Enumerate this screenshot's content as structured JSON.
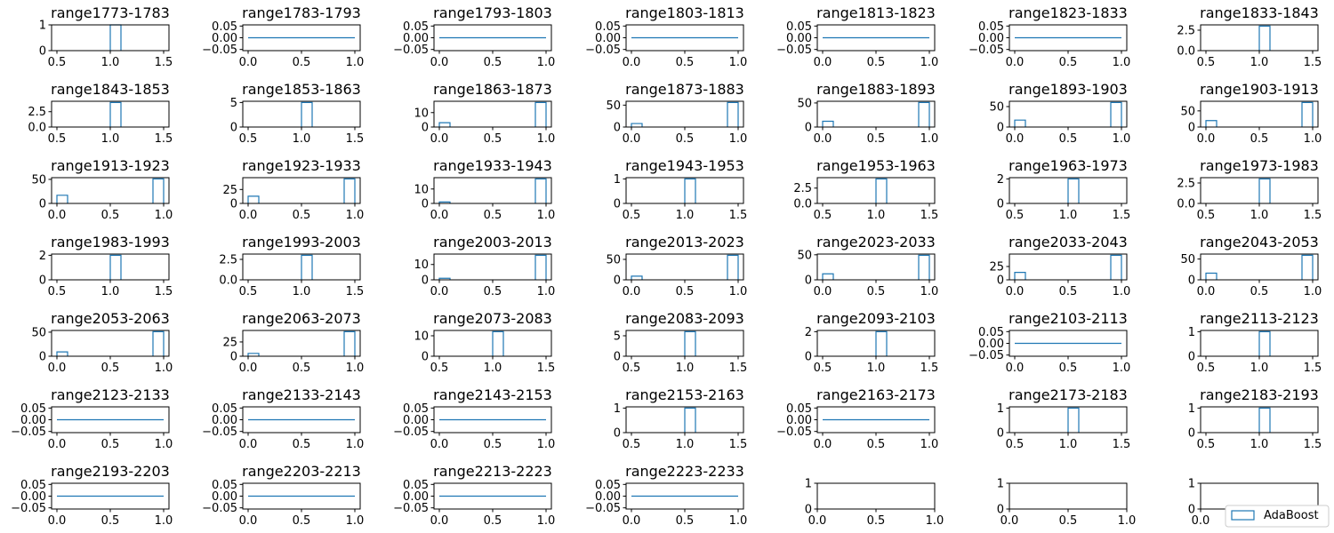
{
  "chart_data": {
    "type": "bar",
    "layout": "7x7 small-multiples histogram grid",
    "legend": {
      "label": "AdaBoost",
      "location": "lower-right"
    },
    "panels": [
      {
        "title": "range1773-1783",
        "kind": "center",
        "value": 1,
        "ylim": [
          0,
          1
        ],
        "yticks": [
          "0",
          "1"
        ],
        "xlim": [
          0.45,
          1.55
        ],
        "xticks": [
          "0.5",
          "1.0",
          "1.5"
        ]
      },
      {
        "title": "range1783-1793",
        "kind": "flat",
        "ylim": [
          -0.055,
          0.055
        ],
        "yticks": [
          "0.00",
          "0.05",
          "−0.05"
        ],
        "xlim": [
          -0.05,
          1.05
        ],
        "xticks": [
          "0.0",
          "0.5",
          "1.0"
        ]
      },
      {
        "title": "range1793-1803",
        "kind": "flat",
        "ylim": [
          -0.055,
          0.055
        ],
        "yticks": [
          "0.00",
          "0.05",
          "−0.05"
        ],
        "xlim": [
          -0.05,
          1.05
        ],
        "xticks": [
          "0.0",
          "0.5",
          "1.0"
        ]
      },
      {
        "title": "range1803-1813",
        "kind": "flat",
        "ylim": [
          -0.055,
          0.055
        ],
        "yticks": [
          "0.00",
          "0.05",
          "−0.05"
        ],
        "xlim": [
          -0.05,
          1.05
        ],
        "xticks": [
          "0.0",
          "0.5",
          "1.0"
        ]
      },
      {
        "title": "range1813-1823",
        "kind": "flat",
        "ylim": [
          -0.055,
          0.055
        ],
        "yticks": [
          "0.00",
          "0.05",
          "−0.05"
        ],
        "xlim": [
          -0.05,
          1.05
        ],
        "xticks": [
          "0.0",
          "0.5",
          "1.0"
        ]
      },
      {
        "title": "range1823-1833",
        "kind": "flat",
        "ylim": [
          -0.055,
          0.055
        ],
        "yticks": [
          "0.00",
          "0.05",
          "−0.05"
        ],
        "xlim": [
          -0.05,
          1.05
        ],
        "xticks": [
          "0.0",
          "0.5",
          "1.0"
        ]
      },
      {
        "title": "range1833-1843",
        "kind": "center",
        "value": 3,
        "ylim": [
          0,
          3.15
        ],
        "yticks": [
          "0.0",
          "2.5"
        ],
        "xlim": [
          0.45,
          1.55
        ],
        "xticks": [
          "0.5",
          "1.0",
          "1.5"
        ]
      },
      {
        "title": "range1843-1853",
        "kind": "center",
        "value": 4,
        "ylim": [
          0,
          4.2
        ],
        "yticks": [
          "0.0",
          "2.5"
        ],
        "xlim": [
          0.45,
          1.55
        ],
        "xticks": [
          "0.5",
          "1.0",
          "1.5"
        ]
      },
      {
        "title": "range1853-1863",
        "kind": "center",
        "value": 5,
        "ylim": [
          0,
          5.25
        ],
        "yticks": [
          "0",
          "5"
        ],
        "xlim": [
          0.45,
          1.55
        ],
        "xticks": [
          "0.5",
          "1.0",
          "1.5"
        ]
      },
      {
        "title": "range1863-1873",
        "kind": "two",
        "value0": 3,
        "value1": 17,
        "ylim": [
          0,
          17.85
        ],
        "yticks": [
          "0",
          "10"
        ],
        "xlim": [
          -0.05,
          1.05
        ],
        "xticks": [
          "0.0",
          "0.5",
          "1.0"
        ]
      },
      {
        "title": "range1873-1883",
        "kind": "two",
        "value0": 8,
        "value1": 56,
        "ylim": [
          0,
          58.8
        ],
        "yticks": [
          "0",
          "50"
        ],
        "xlim": [
          -0.05,
          1.05
        ],
        "xticks": [
          "0.0",
          "0.5",
          "1.0"
        ]
      },
      {
        "title": "range1883-1893",
        "kind": "two",
        "value0": 12,
        "value1": 51,
        "ylim": [
          0,
          53.55
        ],
        "yticks": [
          "0",
          "50"
        ],
        "xlim": [
          -0.05,
          1.05
        ],
        "xticks": [
          "0.0",
          "0.5",
          "1.0"
        ]
      },
      {
        "title": "range1893-1903",
        "kind": "two",
        "value0": 17,
        "value1": 60,
        "ylim": [
          0,
          63
        ],
        "yticks": [
          "0",
          "50"
        ],
        "xlim": [
          -0.05,
          1.05
        ],
        "xticks": [
          "0.0",
          "0.5",
          "1.0"
        ]
      },
      {
        "title": "range1903-1913",
        "kind": "two",
        "value0": 20,
        "value1": 76,
        "ylim": [
          0,
          79.8
        ],
        "yticks": [
          "0",
          "50"
        ],
        "xlim": [
          -0.05,
          1.05
        ],
        "xticks": [
          "0.0",
          "0.5",
          "1.0"
        ]
      },
      {
        "title": "range1913-1923",
        "kind": "two",
        "value0": 17,
        "value1": 51,
        "ylim": [
          0,
          53.55
        ],
        "yticks": [
          "0",
          "50"
        ],
        "xlim": [
          -0.05,
          1.05
        ],
        "xticks": [
          "0.0",
          "0.5",
          "1.0"
        ]
      },
      {
        "title": "range1923-1933",
        "kind": "two",
        "value0": 13,
        "value1": 44,
        "ylim": [
          0,
          46.2
        ],
        "yticks": [
          "0",
          "25"
        ],
        "xlim": [
          -0.05,
          1.05
        ],
        "xticks": [
          "0.0",
          "0.5",
          "1.0"
        ]
      },
      {
        "title": "range1933-1943",
        "kind": "two",
        "value0": 1,
        "value1": 17,
        "ylim": [
          0,
          17.85
        ],
        "yticks": [
          "0",
          "10"
        ],
        "xlim": [
          -0.05,
          1.05
        ],
        "xticks": [
          "0.0",
          "0.5",
          "1.0"
        ]
      },
      {
        "title": "range1943-1953",
        "kind": "center",
        "value": 1,
        "ylim": [
          0,
          1.05
        ],
        "yticks": [
          "0",
          "1"
        ],
        "xlim": [
          0.45,
          1.55
        ],
        "xticks": [
          "0.5",
          "1.0",
          "1.5"
        ]
      },
      {
        "title": "range1953-1963",
        "kind": "center",
        "value": 4,
        "ylim": [
          0,
          4.2
        ],
        "yticks": [
          "0.0",
          "2.5"
        ],
        "xlim": [
          0.45,
          1.55
        ],
        "xticks": [
          "0.5",
          "1.0",
          "1.5"
        ]
      },
      {
        "title": "range1963-1973",
        "kind": "center",
        "value": 2,
        "ylim": [
          0,
          2.1
        ],
        "yticks": [
          "0",
          "2"
        ],
        "xlim": [
          0.45,
          1.55
        ],
        "xticks": [
          "0.5",
          "1.0",
          "1.5"
        ]
      },
      {
        "title": "range1973-1983",
        "kind": "center",
        "value": 3,
        "ylim": [
          0,
          3.15
        ],
        "yticks": [
          "0.0",
          "2.5"
        ],
        "xlim": [
          0.45,
          1.55
        ],
        "xticks": [
          "0.5",
          "1.0",
          "1.5"
        ]
      },
      {
        "title": "range1983-1993",
        "kind": "center",
        "value": 2,
        "ylim": [
          0,
          2.1
        ],
        "yticks": [
          "0",
          "2"
        ],
        "xlim": [
          0.45,
          1.55
        ],
        "xticks": [
          "0.5",
          "1.0",
          "1.5"
        ]
      },
      {
        "title": "range1993-2003",
        "kind": "center",
        "value": 3,
        "ylim": [
          0,
          3.15
        ],
        "yticks": [
          "0.0",
          "2.5"
        ],
        "xlim": [
          0.45,
          1.55
        ],
        "xticks": [
          "0.5",
          "1.0",
          "1.5"
        ]
      },
      {
        "title": "range2003-2013",
        "kind": "two",
        "value0": 1,
        "value1": 16,
        "ylim": [
          0,
          16.8
        ],
        "yticks": [
          "0",
          "10"
        ],
        "xlim": [
          -0.05,
          1.05
        ],
        "xticks": [
          "0.0",
          "0.5",
          "1.0"
        ]
      },
      {
        "title": "range2013-2023",
        "kind": "two",
        "value0": 9,
        "value1": 60,
        "ylim": [
          0,
          63
        ],
        "yticks": [
          "0",
          "50"
        ],
        "xlim": [
          -0.05,
          1.05
        ],
        "xticks": [
          "0.0",
          "0.5",
          "1.0"
        ]
      },
      {
        "title": "range2023-2033",
        "kind": "two",
        "value0": 12,
        "value1": 49,
        "ylim": [
          0,
          51.45
        ],
        "yticks": [
          "0",
          "50"
        ],
        "xlim": [
          -0.05,
          1.05
        ],
        "xticks": [
          "0.0",
          "0.5",
          "1.0"
        ]
      },
      {
        "title": "range2033-2043",
        "kind": "two",
        "value0": 14,
        "value1": 46,
        "ylim": [
          0,
          48.3
        ],
        "yticks": [
          "0",
          "25"
        ],
        "xlim": [
          -0.05,
          1.05
        ],
        "xticks": [
          "0.0",
          "0.5",
          "1.0"
        ]
      },
      {
        "title": "range2043-2053",
        "kind": "two",
        "value0": 16,
        "value1": 59,
        "ylim": [
          0,
          61.95
        ],
        "yticks": [
          "0",
          "50"
        ],
        "xlim": [
          -0.05,
          1.05
        ],
        "xticks": [
          "0.0",
          "0.5",
          "1.0"
        ]
      },
      {
        "title": "range2053-2063",
        "kind": "two",
        "value0": 9,
        "value1": 51,
        "ylim": [
          0,
          53.55
        ],
        "yticks": [
          "0",
          "50"
        ],
        "xlim": [
          -0.05,
          1.05
        ],
        "xticks": [
          "0.0",
          "0.5",
          "1.0"
        ]
      },
      {
        "title": "range2063-2073",
        "kind": "two",
        "value0": 5,
        "value1": 43,
        "ylim": [
          0,
          45.15
        ],
        "yticks": [
          "0",
          "25"
        ],
        "xlim": [
          -0.05,
          1.05
        ],
        "xticks": [
          "0.0",
          "0.5",
          "1.0"
        ]
      },
      {
        "title": "range2073-2083",
        "kind": "center",
        "value": 12,
        "ylim": [
          0,
          12.6
        ],
        "yticks": [
          "0",
          "10"
        ],
        "xlim": [
          0.45,
          1.55
        ],
        "xticks": [
          "0.5",
          "1.0",
          "1.5"
        ]
      },
      {
        "title": "range2083-2093",
        "kind": "center",
        "value": 6,
        "ylim": [
          0,
          6.3
        ],
        "yticks": [
          "0",
          "5"
        ],
        "xlim": [
          0.45,
          1.55
        ],
        "xticks": [
          "0.5",
          "1.0",
          "1.5"
        ]
      },
      {
        "title": "range2093-2103",
        "kind": "center",
        "value": 2,
        "ylim": [
          0,
          2.1
        ],
        "yticks": [
          "0",
          "2"
        ],
        "xlim": [
          0.45,
          1.55
        ],
        "xticks": [
          "0.5",
          "1.0",
          "1.5"
        ]
      },
      {
        "title": "range2103-2113",
        "kind": "flat",
        "ylim": [
          -0.055,
          0.055
        ],
        "yticks": [
          "0.00",
          "0.05",
          "−0.05"
        ],
        "xlim": [
          -0.05,
          1.05
        ],
        "xticks": [
          "0.0",
          "0.5",
          "1.0"
        ]
      },
      {
        "title": "range2113-2123",
        "kind": "center",
        "value": 1,
        "ylim": [
          0,
          1.05
        ],
        "yticks": [
          "0",
          "1"
        ],
        "xlim": [
          0.45,
          1.55
        ],
        "xticks": [
          "0.5",
          "1.0",
          "1.5"
        ]
      },
      {
        "title": "range2123-2133",
        "kind": "flat",
        "ylim": [
          -0.055,
          0.055
        ],
        "yticks": [
          "0.00",
          "0.05",
          "−0.05"
        ],
        "xlim": [
          -0.05,
          1.05
        ],
        "xticks": [
          "0.0",
          "0.5",
          "1.0"
        ]
      },
      {
        "title": "range2133-2143",
        "kind": "flat",
        "ylim": [
          -0.055,
          0.055
        ],
        "yticks": [
          "0.00",
          "0.05",
          "−0.05"
        ],
        "xlim": [
          -0.05,
          1.05
        ],
        "xticks": [
          "0.0",
          "0.5",
          "1.0"
        ]
      },
      {
        "title": "range2143-2153",
        "kind": "flat",
        "ylim": [
          -0.055,
          0.055
        ],
        "yticks": [
          "0.00",
          "0.05",
          "−0.05"
        ],
        "xlim": [
          -0.05,
          1.05
        ],
        "xticks": [
          "0.0",
          "0.5",
          "1.0"
        ]
      },
      {
        "title": "range2153-2163",
        "kind": "center",
        "value": 1,
        "ylim": [
          0,
          1.05
        ],
        "yticks": [
          "0",
          "1"
        ],
        "xlim": [
          0.45,
          1.55
        ],
        "xticks": [
          "0.5",
          "1.0",
          "1.5"
        ]
      },
      {
        "title": "range2163-2173",
        "kind": "flat",
        "ylim": [
          -0.055,
          0.055
        ],
        "yticks": [
          "0.00",
          "0.05",
          "−0.05"
        ],
        "xlim": [
          -0.05,
          1.05
        ],
        "xticks": [
          "0.0",
          "0.5",
          "1.0"
        ]
      },
      {
        "title": "range2173-2183",
        "kind": "center",
        "value": 1,
        "ylim": [
          0,
          1.05
        ],
        "yticks": [
          "0",
          "1"
        ],
        "xlim": [
          0.45,
          1.55
        ],
        "xticks": [
          "0.5",
          "1.0",
          "1.5"
        ]
      },
      {
        "title": "range2183-2193",
        "kind": "center",
        "value": 1,
        "ylim": [
          0,
          1.05
        ],
        "yticks": [
          "0",
          "1"
        ],
        "xlim": [
          0.45,
          1.55
        ],
        "xticks": [
          "0.5",
          "1.0",
          "1.5"
        ]
      },
      {
        "title": "range2193-2203",
        "kind": "flat",
        "ylim": [
          -0.055,
          0.055
        ],
        "yticks": [
          "0.00",
          "0.05",
          "−0.05"
        ],
        "xlim": [
          -0.05,
          1.05
        ],
        "xticks": [
          "0.0",
          "0.5",
          "1.0"
        ]
      },
      {
        "title": "range2203-2213",
        "kind": "flat",
        "ylim": [
          -0.055,
          0.055
        ],
        "yticks": [
          "0.00",
          "0.05",
          "−0.05"
        ],
        "xlim": [
          -0.05,
          1.05
        ],
        "xticks": [
          "0.0",
          "0.5",
          "1.0"
        ]
      },
      {
        "title": "range2213-2223",
        "kind": "flat",
        "ylim": [
          -0.055,
          0.055
        ],
        "yticks": [
          "0.00",
          "0.05",
          "−0.05"
        ],
        "xlim": [
          -0.05,
          1.05
        ],
        "xticks": [
          "0.0",
          "0.5",
          "1.0"
        ]
      },
      {
        "title": "range2223-2233",
        "kind": "flat",
        "ylim": [
          -0.055,
          0.055
        ],
        "yticks": [
          "0.00",
          "0.05",
          "−0.05"
        ],
        "xlim": [
          -0.05,
          1.05
        ],
        "xticks": [
          "0.0",
          "0.5",
          "1.0"
        ]
      },
      {
        "title": "",
        "kind": "empty",
        "ylim": [
          0,
          1
        ],
        "yticks": [
          "0",
          "1"
        ],
        "xlim": [
          0,
          1
        ],
        "xticks": [
          "0.0",
          "0.5",
          "1.0"
        ]
      },
      {
        "title": "",
        "kind": "empty",
        "ylim": [
          0,
          1
        ],
        "yticks": [
          "0",
          "1"
        ],
        "xlim": [
          0,
          1
        ],
        "xticks": [
          "0.0",
          "0.5",
          "1.0"
        ]
      },
      {
        "title": "",
        "kind": "empty",
        "ylim": [
          0,
          1
        ],
        "yticks": [
          "0",
          "1"
        ],
        "xlim": [
          0,
          1
        ],
        "xticks": [
          "0.0",
          "0.5",
          "1.0"
        ]
      }
    ]
  },
  "colors": {
    "series": "#1f77b4",
    "axes": "#000000",
    "legend_edge": "#cccccc"
  }
}
